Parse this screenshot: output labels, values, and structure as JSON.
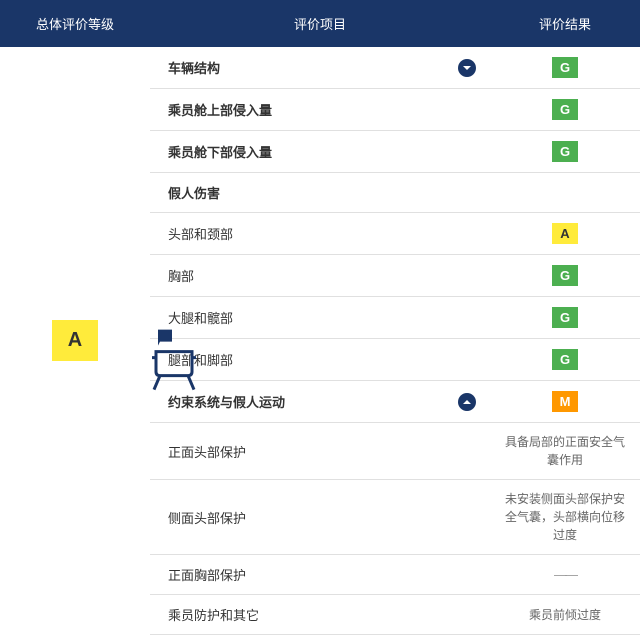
{
  "colors": {
    "header_bg": "#1a3668",
    "g_bg": "#4caf50",
    "a_bg": "#ffeb3b",
    "m_bg": "#ff9800",
    "a_text": "#333333",
    "g_text": "#ffffff",
    "m_text": "#ffffff"
  },
  "headers": {
    "overall": "总体评价等级",
    "item": "评价项目",
    "result": "评价结果"
  },
  "overall_grade": "A",
  "rows": [
    {
      "label": "车辆结构",
      "bold": true,
      "chev": "down",
      "result_type": "badge",
      "result": "G"
    },
    {
      "label": "乘员舱上部侵入量",
      "bold": true,
      "result_type": "badge",
      "result": "G"
    },
    {
      "label": "乘员舱下部侵入量",
      "bold": true,
      "result_type": "badge",
      "result": "G"
    },
    {
      "label": "假人伤害",
      "bold": true,
      "result_type": "none"
    },
    {
      "label": "头部和颈部",
      "result_type": "badge",
      "result": "A"
    },
    {
      "label": "胸部",
      "result_type": "badge",
      "result": "G"
    },
    {
      "label": "大腿和髋部",
      "result_type": "badge",
      "result": "G"
    },
    {
      "label": "腿部和脚部",
      "result_type": "badge",
      "result": "G"
    },
    {
      "label": "约束系统与假人运动",
      "bold": true,
      "chev": "up",
      "result_type": "badge",
      "result": "M"
    },
    {
      "label": "正面头部保护",
      "result_type": "note",
      "note": "具备局部的正面安全气囊作用"
    },
    {
      "label": "侧面头部保护",
      "result_type": "note",
      "note": "未安装侧面头部保护安全气囊，头部横向位移过度"
    },
    {
      "label": "正面胸部保护",
      "result_type": "dash"
    },
    {
      "label": "乘员防护和其它",
      "result_type": "note",
      "note": "乘员前倾过度"
    }
  ]
}
